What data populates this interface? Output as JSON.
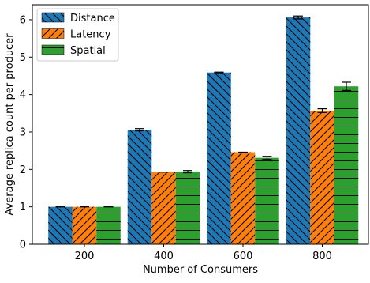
{
  "chart_data": {
    "type": "bar",
    "title": "",
    "xlabel": "Number of Consumers",
    "ylabel": "Average replica count per producer",
    "categories": [
      "200",
      "400",
      "600",
      "800"
    ],
    "ylim": [
      0,
      6.4
    ],
    "yticks": [
      0,
      1,
      2,
      3,
      4,
      5,
      6
    ],
    "grid": false,
    "legend_position": "top-left",
    "series": [
      {
        "name": "Distance",
        "values": [
          1.0,
          3.06,
          4.59,
          6.06
        ],
        "errors": [
          0.0,
          0.03,
          0.01,
          0.04
        ],
        "color": "#1f77b4",
        "hatch": "backslash"
      },
      {
        "name": "Latency",
        "values": [
          1.0,
          1.93,
          2.46,
          3.57
        ],
        "errors": [
          0.0,
          0.0,
          0.0,
          0.05
        ],
        "color": "#ff7f0e",
        "hatch": "slash"
      },
      {
        "name": "Spatial",
        "values": [
          1.0,
          1.94,
          2.31,
          4.22
        ],
        "errors": [
          0.0,
          0.03,
          0.04,
          0.11
        ],
        "color": "#2ca02c",
        "hatch": "horizontal"
      }
    ]
  }
}
